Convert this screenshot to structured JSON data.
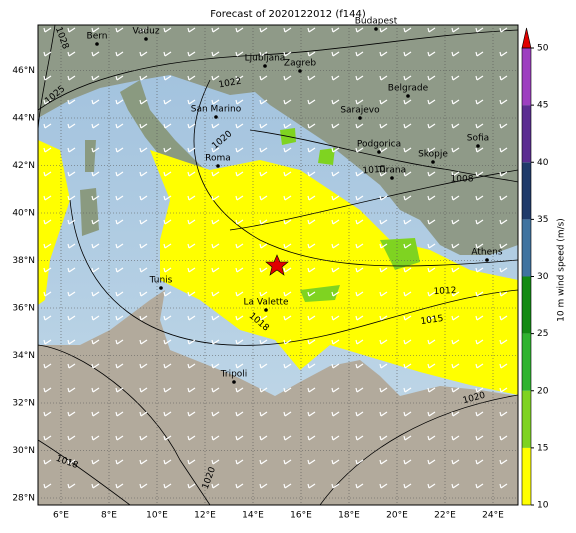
{
  "title": "Forecast of 2020122012 (f144)",
  "lon_ticks": [
    {
      "value": 6,
      "label": "6°E"
    },
    {
      "value": 8,
      "label": "8°E"
    },
    {
      "value": 10,
      "label": "10°E"
    },
    {
      "value": 12,
      "label": "12°E"
    },
    {
      "value": 14,
      "label": "14°E"
    },
    {
      "value": 16,
      "label": "16°E"
    },
    {
      "value": 18,
      "label": "18°E"
    },
    {
      "value": 20,
      "label": "20°E"
    },
    {
      "value": 22,
      "label": "22°E"
    },
    {
      "value": 24,
      "label": "24°E"
    }
  ],
  "lat_ticks": [
    {
      "value": 28,
      "label": "28°N"
    },
    {
      "value": 30,
      "label": "30°N"
    },
    {
      "value": 32,
      "label": "32°N"
    },
    {
      "value": 34,
      "label": "34°N"
    },
    {
      "value": 36,
      "label": "36°N"
    },
    {
      "value": 38,
      "label": "38°N"
    },
    {
      "value": 40,
      "label": "40°N"
    },
    {
      "value": 42,
      "label": "42°N"
    },
    {
      "value": 44,
      "label": "44°N"
    },
    {
      "value": 46,
      "label": "46°N"
    }
  ],
  "cities": [
    "Bern",
    "Vaduz",
    "Budapest",
    "Ljubljana",
    "Zagreb",
    "Belgrade",
    "San Marino",
    "Sarajevo",
    "Roma",
    "Podgorica",
    "Sofia",
    "Skopje",
    "Tirana",
    "Athens",
    "Tunis",
    "La Valette",
    "Tripoli"
  ],
  "isobar_labels": [
    "1022",
    "1025",
    "1028",
    "1020",
    "1010",
    "1008",
    "1012",
    "1015",
    "1018",
    "1020",
    "1018",
    "1020"
  ],
  "colorbar": {
    "label": "10 m wind speed (m/s)",
    "ticks": [
      10,
      15,
      20,
      25,
      30,
      35,
      40,
      45,
      50
    ],
    "colors": [
      "#ffff00",
      "#7fd321",
      "#2fb32f",
      "#138a13",
      "#3f73a0",
      "#1f3a6a",
      "#5b2d91",
      "#9d3fc0"
    ],
    "extend_color": "#e00000"
  }
}
